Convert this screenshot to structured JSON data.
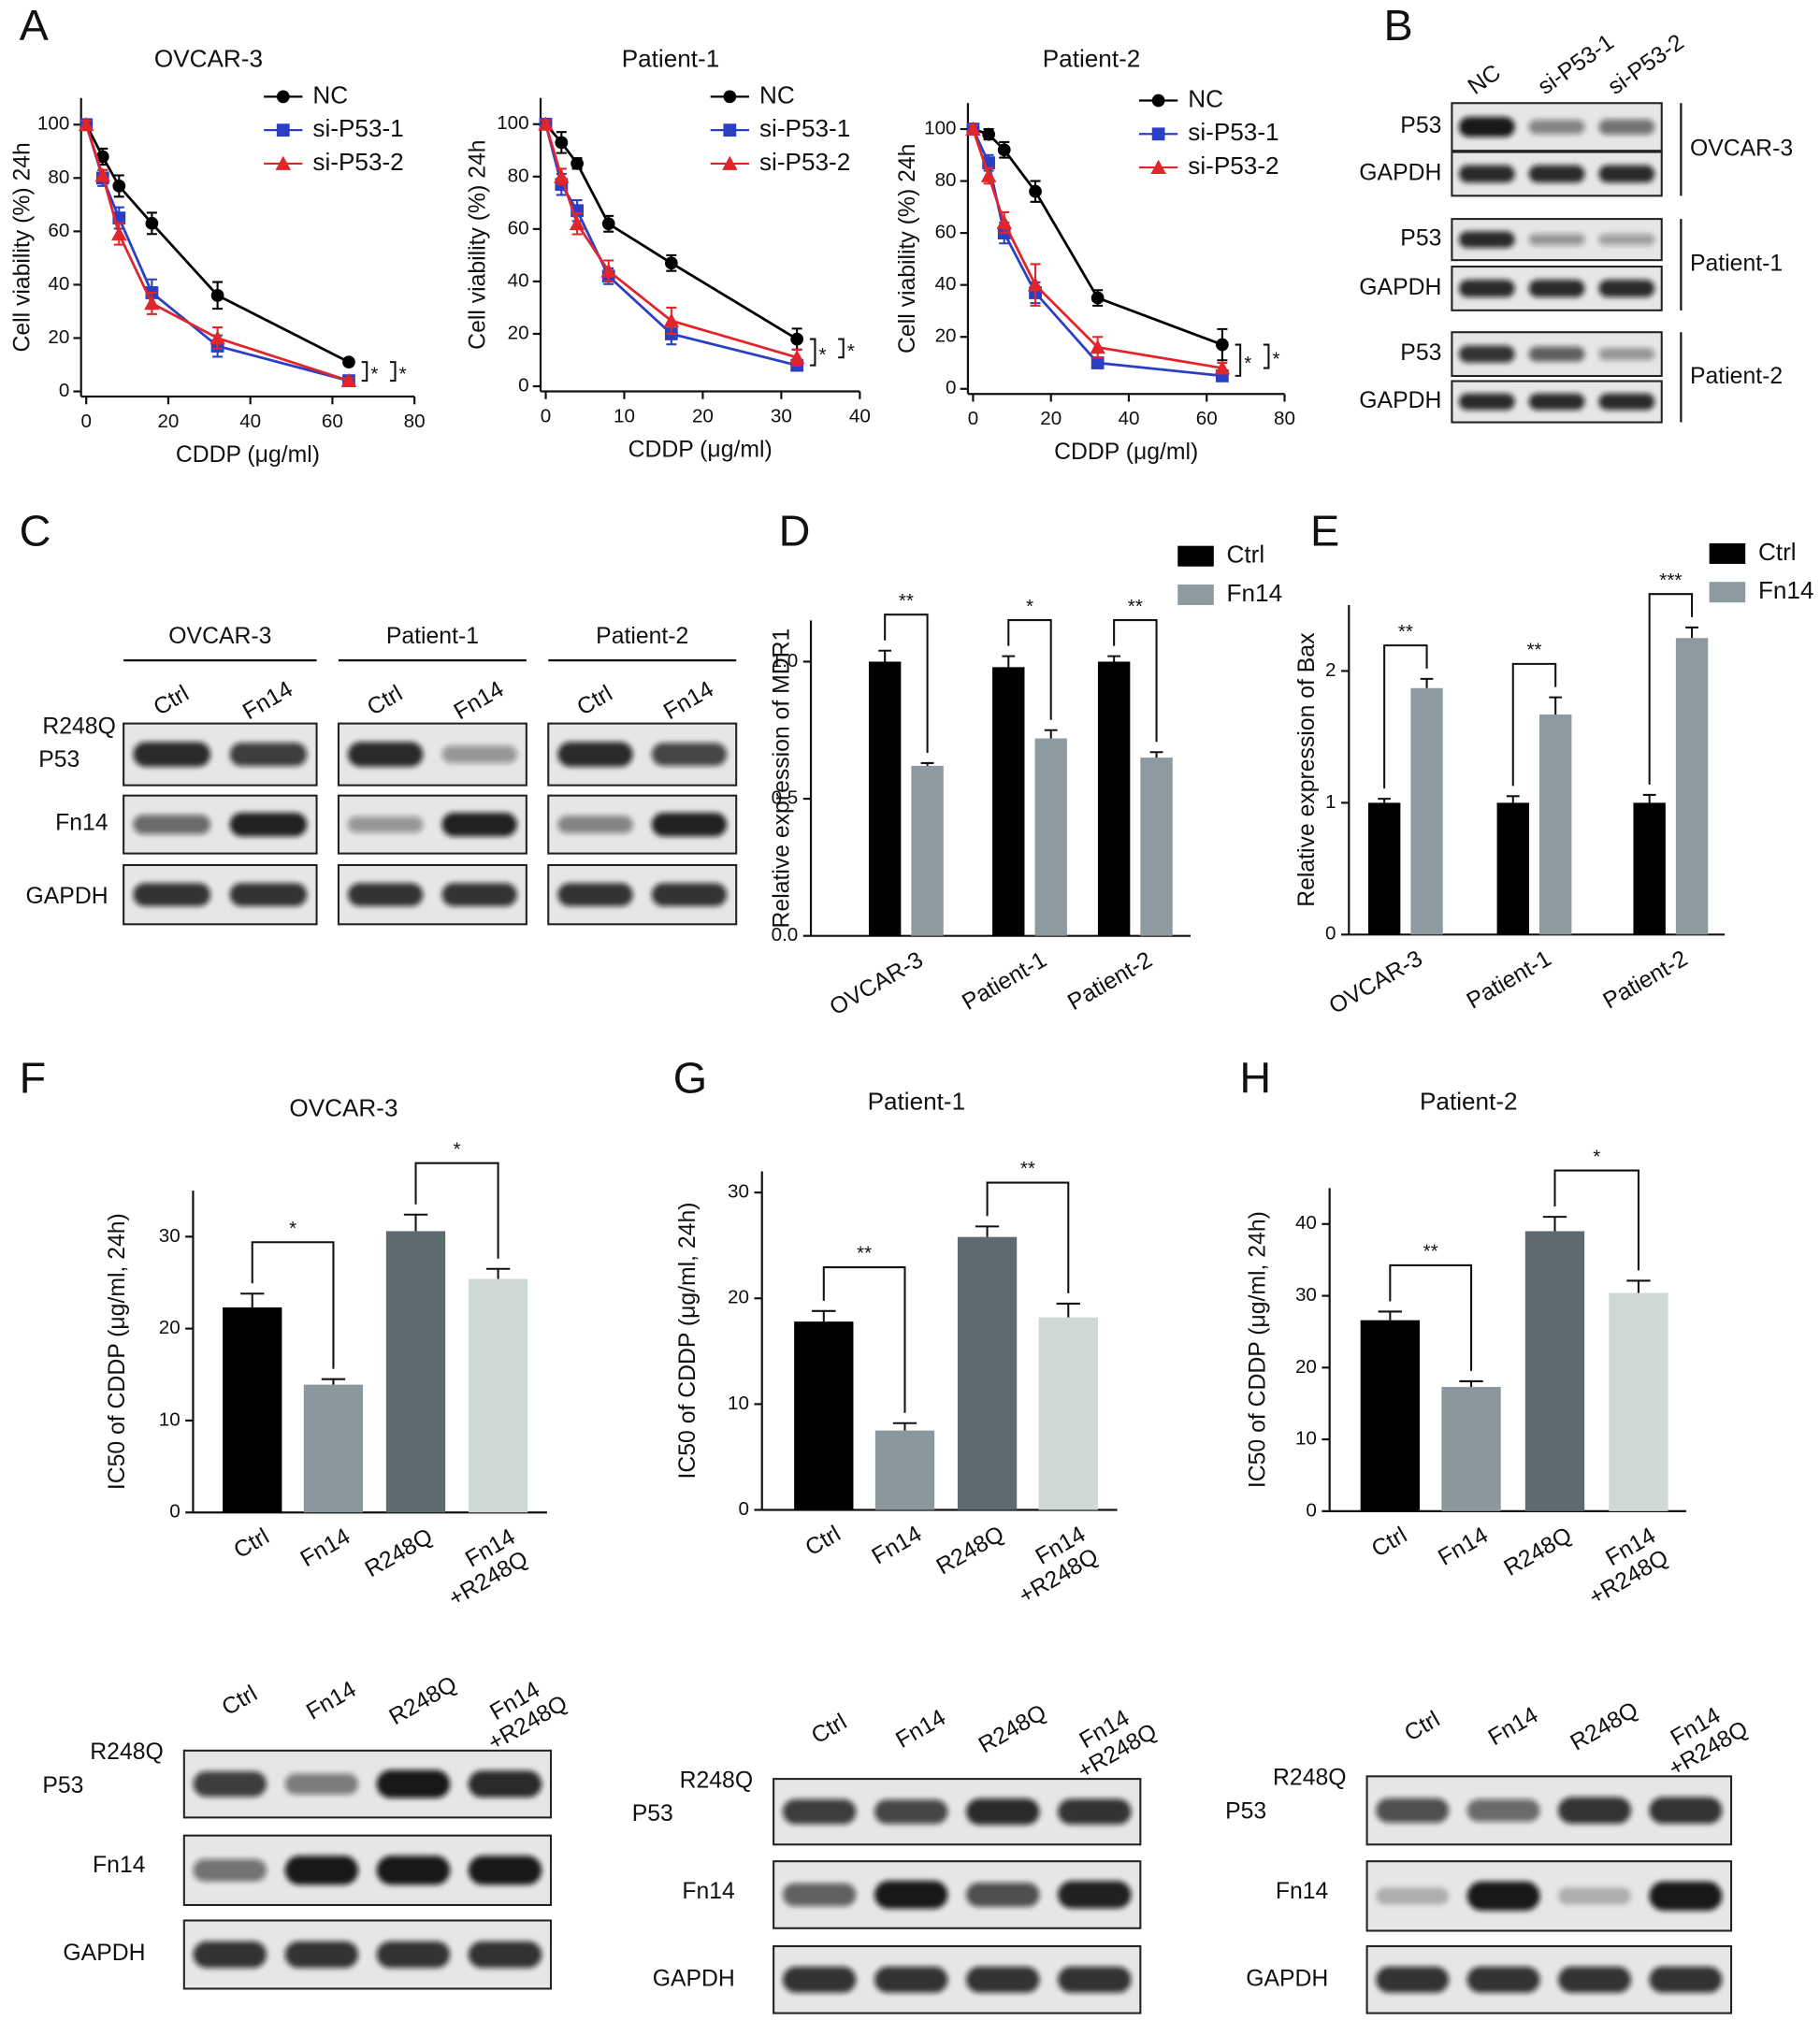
{
  "panels": [
    "A",
    "B",
    "C",
    "D",
    "E",
    "F",
    "G",
    "H"
  ],
  "chart_data": [
    {
      "type": "line",
      "title": "OVCAR-3",
      "x_label": "CDDP (μg/ml)",
      "y_label": "Cell viability (%) 24h",
      "x": [
        0,
        4,
        8,
        16,
        32,
        64
      ],
      "series": [
        {
          "name": "NC",
          "color": "#000000",
          "marker": "circle",
          "values": [
            100,
            88,
            77,
            63,
            36,
            11
          ],
          "errors": [
            1.5,
            3,
            4,
            4,
            5,
            1
          ]
        },
        {
          "name": "si-P53-1",
          "color": "#2b3fc4",
          "marker": "square",
          "values": [
            100,
            80,
            65,
            37,
            17,
            4
          ],
          "errors": [
            1.5,
            3,
            4,
            5,
            4,
            1
          ]
        },
        {
          "name": "si-P53-2",
          "color": "#e0262b",
          "marker": "triangle",
          "values": [
            100,
            81,
            59,
            33,
            20,
            4
          ],
          "errors": [
            1.5,
            2,
            4,
            4,
            4,
            1
          ]
        }
      ],
      "xlim": [
        0,
        80
      ],
      "xticks": [
        0,
        20,
        40,
        60,
        80
      ],
      "ylim": [
        0,
        110
      ],
      "yticks": [
        0,
        20,
        40,
        60,
        80,
        100
      ],
      "annotations": [
        "*",
        "*"
      ]
    },
    {
      "type": "line",
      "title": "Patient-1",
      "x_label": "CDDP (μg/ml)",
      "y_label": "Cell viability (%) 24h",
      "x": [
        0,
        2,
        4,
        8,
        16,
        32
      ],
      "series": [
        {
          "name": "NC",
          "color": "#000000",
          "marker": "circle",
          "values": [
            100,
            93,
            85,
            62,
            47,
            18
          ],
          "errors": [
            1.5,
            4,
            2,
            3,
            3,
            4
          ]
        },
        {
          "name": "si-P53-1",
          "color": "#2b3fc4",
          "marker": "square",
          "values": [
            100,
            77,
            67,
            42,
            20,
            8
          ],
          "errors": [
            1.5,
            4,
            4,
            3,
            4,
            2
          ]
        },
        {
          "name": "si-P53-2",
          "color": "#e0262b",
          "marker": "triangle",
          "values": [
            100,
            80,
            62,
            44,
            25,
            11
          ],
          "errors": [
            1.5,
            3,
            4,
            4,
            5,
            3
          ]
        }
      ],
      "xlim": [
        0,
        40
      ],
      "xticks": [
        0,
        10,
        20,
        30,
        40
      ],
      "ylim": [
        0,
        110
      ],
      "yticks": [
        0,
        20,
        40,
        60,
        80,
        100
      ],
      "annotations": [
        "*",
        "*"
      ]
    },
    {
      "type": "line",
      "title": "Patient-2",
      "x_label": "CDDP (μg/ml)",
      "y_label": "Cell viability (%) 24h",
      "x": [
        0,
        4,
        8,
        16,
        32,
        64
      ],
      "series": [
        {
          "name": "NC",
          "color": "#000000",
          "marker": "circle",
          "values": [
            100,
            98,
            92,
            76,
            35,
            17
          ],
          "errors": [
            1.5,
            2,
            3,
            4,
            3,
            6
          ]
        },
        {
          "name": "si-P53-1",
          "color": "#2b3fc4",
          "marker": "square",
          "values": [
            100,
            87,
            60,
            37,
            10,
            5
          ],
          "errors": [
            1.5,
            3,
            4,
            4,
            2,
            2
          ]
        },
        {
          "name": "si-P53-2",
          "color": "#e0262b",
          "marker": "triangle",
          "values": [
            100,
            82,
            64,
            40,
            16,
            8
          ],
          "errors": [
            1.5,
            3,
            4,
            8,
            4,
            2
          ]
        }
      ],
      "xlim": [
        0,
        80
      ],
      "xticks": [
        0,
        20,
        40,
        60,
        80
      ],
      "ylim": [
        0,
        110
      ],
      "yticks": [
        0,
        20,
        40,
        60,
        80,
        100
      ],
      "annotations": [
        "*",
        "*"
      ]
    },
    {
      "type": "bar",
      "y_label": "Relative expression of MDR1",
      "categories": [
        "OVCAR-3",
        "Patient-1",
        "Patient-2"
      ],
      "series": [
        {
          "name": "Ctrl",
          "color": "#000000",
          "values": [
            1.0,
            0.98,
            1.0
          ],
          "errors": [
            0.04,
            0.04,
            0.02
          ]
        },
        {
          "name": "Fn14",
          "color": "#8d9ba1",
          "values": [
            0.62,
            0.72,
            0.65
          ],
          "errors": [
            0.01,
            0.03,
            0.02
          ]
        }
      ],
      "ylim": [
        0,
        1.15
      ],
      "yticks": [
        {
          "value": 0,
          "label": "0.0"
        },
        0.5,
        {
          "value": 1,
          "label": "1.0"
        }
      ],
      "annotations": [
        "**",
        "*",
        "**"
      ]
    },
    {
      "type": "bar",
      "y_label": "Relative expression of Bax",
      "categories": [
        "OVCAR-3",
        "Patient-1",
        "Patient-2"
      ],
      "series": [
        {
          "name": "Ctrl",
          "color": "#000000",
          "values": [
            1.0,
            1.0,
            1.0
          ],
          "errors": [
            0.03,
            0.05,
            0.06
          ]
        },
        {
          "name": "Fn14",
          "color": "#8d9ba1",
          "values": [
            1.87,
            1.67,
            2.25
          ],
          "errors": [
            0.07,
            0.13,
            0.08
          ]
        }
      ],
      "ylim": [
        0,
        2.5
      ],
      "yticks": [
        0,
        1,
        2
      ],
      "annotations": [
        "**",
        "**",
        "***"
      ]
    },
    {
      "type": "bar",
      "title": "OVCAR-3",
      "y_label": "IC50 of CDDP (μg/ml, 24h)",
      "categories": [
        "Ctrl",
        "Fn14",
        "R248Q",
        "Fn14\n+R248Q"
      ],
      "values": [
        22.3,
        13.9,
        30.6,
        25.4
      ],
      "errors": [
        1.5,
        0.6,
        1.8,
        1.1
      ],
      "colors": [
        "#000000",
        "#8a979d",
        "#5e6b6e",
        "#cdd8d7"
      ],
      "ylim": [
        0,
        35
      ],
      "yticks": [
        0,
        10,
        20,
        30
      ],
      "annotations": [
        "*",
        "*"
      ]
    },
    {
      "type": "bar",
      "title": "Patient-1",
      "y_label": "IC50 of CDDP (μg/ml, 24h)",
      "categories": [
        "Ctrl",
        "Fn14",
        "R248Q",
        "Fn14\n+R248Q"
      ],
      "values": [
        17.8,
        7.5,
        25.8,
        18.2
      ],
      "errors": [
        1.0,
        0.7,
        1.0,
        1.3
      ],
      "colors": [
        "#000000",
        "#8a979d",
        "#5e6b6e",
        "#cdd8d7"
      ],
      "ylim": [
        0,
        32
      ],
      "yticks": [
        0,
        10,
        20,
        30
      ],
      "annotations": [
        "**",
        "**"
      ]
    },
    {
      "type": "bar",
      "title": "Patient-2",
      "y_label": "IC50 of CDDP (μg/ml, 24h)",
      "categories": [
        "Ctrl",
        "Fn14",
        "R248Q",
        "Fn14\n+R248Q"
      ],
      "values": [
        26.6,
        17.3,
        39.0,
        30.4
      ],
      "errors": [
        1.2,
        0.8,
        2.0,
        1.7
      ],
      "colors": [
        "#000000",
        "#8a979d",
        "#5e6b6e",
        "#cdd8d7"
      ],
      "ylim": [
        0,
        45
      ],
      "yticks": [
        0,
        10,
        20,
        30,
        40
      ],
      "annotations": [
        "**",
        "*"
      ]
    }
  ],
  "blots": [
    {
      "lanes": [
        "NC",
        "si-P53-1",
        "si-P53-2"
      ],
      "groups": [
        {
          "name": "OVCAR-3",
          "rows": [
            "P53",
            "GAPDH"
          ]
        },
        {
          "name": "Patient-1",
          "rows": [
            "P53",
            "GAPDH"
          ]
        },
        {
          "name": "Patient-2",
          "rows": [
            "P53",
            "GAPDH"
          ]
        }
      ]
    },
    {
      "groups": [
        {
          "name": "OVCAR-3",
          "lanes": [
            "Ctrl",
            "Fn14"
          ]
        },
        {
          "name": "Patient-1",
          "lanes": [
            "Ctrl",
            "Fn14"
          ]
        },
        {
          "name": "Patient-2",
          "lanes": [
            "Ctrl",
            "Fn14"
          ]
        }
      ],
      "rows": [
        [
          "R248Q",
          "P53"
        ],
        [
          "Fn14"
        ],
        [
          "GAPDH"
        ]
      ]
    },
    {
      "lanes": [
        "Ctrl",
        "Fn14",
        "R248Q",
        "Fn14\n+R248Q"
      ],
      "rows": [
        [
          "R248Q",
          "P53"
        ],
        [
          "Fn14"
        ],
        [
          "GAPDH"
        ]
      ]
    },
    {
      "lanes": [
        "Ctrl",
        "Fn14",
        "R248Q",
        "Fn14\n+R248Q"
      ],
      "rows": [
        [
          "R248Q",
          "P53"
        ],
        [
          "Fn14"
        ],
        [
          "GAPDH"
        ]
      ]
    },
    {
      "lanes": [
        "Ctrl",
        "Fn14",
        "R248Q",
        "Fn14\n+R248Q"
      ],
      "rows": [
        [
          "R248Q",
          "P53"
        ],
        [
          "Fn14"
        ],
        [
          "GAPDH"
        ]
      ]
    }
  ]
}
